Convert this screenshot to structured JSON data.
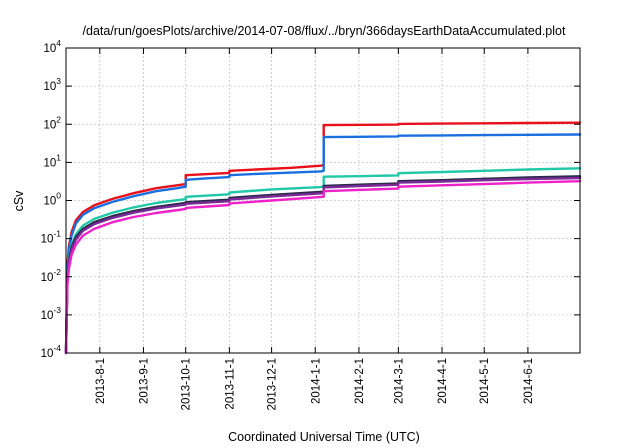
{
  "chart_data": {
    "type": "line",
    "title": "/data/run/goesPlots/archive/2014-07-08/flux/../bryn/366daysEarthDataAccumulated.plot",
    "xlabel": "Coordinated Universal Time (UTC)",
    "ylabel": "cSv",
    "y_scale": "log",
    "ylim": [
      0.0001,
      10000
    ],
    "xlim": [
      "2013-07-08",
      "2014-07-08"
    ],
    "grid": true,
    "legend": "none",
    "x_ticks": [
      "2013-8-1",
      "2013-9-1",
      "2013-10-1",
      "2013-11-1",
      "2013-12-1",
      "2014-1-1",
      "2014-2-1",
      "2014-3-1",
      "2014-4-1",
      "2014-5-1",
      "2014-6-1"
    ],
    "y_ticks": [
      {
        "value": 0.0001,
        "base": "10",
        "exp": "-4"
      },
      {
        "value": 0.001,
        "base": "10",
        "exp": "-3"
      },
      {
        "value": 0.01,
        "base": "10",
        "exp": "-2"
      },
      {
        "value": 0.1,
        "base": "10",
        "exp": "-1"
      },
      {
        "value": 1,
        "base": "10",
        "exp": "0"
      },
      {
        "value": 10,
        "base": "10",
        "exp": "1"
      },
      {
        "value": 100,
        "base": "10",
        "exp": "2"
      },
      {
        "value": 1000,
        "base": "10",
        "exp": "3"
      },
      {
        "value": 10000,
        "base": "10",
        "exp": "4"
      }
    ],
    "series": [
      {
        "color": "#e8101a",
        "x": [
          "2013-07-08",
          "2013-07-09",
          "2013-07-10",
          "2013-07-12",
          "2013-07-15",
          "2013-07-20",
          "2013-07-28",
          "2013-08-10",
          "2013-08-25",
          "2013-09-10",
          "2013-09-25",
          "2013-10-01",
          "2013-10-01",
          "2013-10-15",
          "2013-11-01",
          "2013-11-01",
          "2013-11-20",
          "2013-12-15",
          "2014-01-05",
          "2014-01-07",
          "2014-01-07",
          "2014-01-20",
          "2014-02-10",
          "2014-03-01",
          "2014-03-01",
          "2014-04-01",
          "2014-05-01",
          "2014-06-01",
          "2014-07-08"
        ],
        "y": [
          0.0001,
          0.02,
          0.06,
          0.15,
          0.3,
          0.5,
          0.75,
          1.1,
          1.55,
          2.1,
          2.5,
          2.7,
          4.6,
          4.9,
          5.3,
          6.0,
          6.5,
          7.2,
          8.2,
          8.5,
          95,
          96,
          97,
          98,
          102,
          104,
          106,
          108,
          110
        ]
      },
      {
        "color": "#1a6fe0",
        "x": [
          "2013-07-08",
          "2013-07-09",
          "2013-07-10",
          "2013-07-12",
          "2013-07-15",
          "2013-07-20",
          "2013-07-28",
          "2013-08-10",
          "2013-08-25",
          "2013-09-10",
          "2013-09-25",
          "2013-10-01",
          "2013-10-01",
          "2013-10-15",
          "2013-11-01",
          "2013-11-01",
          "2013-11-20",
          "2013-12-15",
          "2014-01-05",
          "2014-01-07",
          "2014-01-07",
          "2014-02-01",
          "2014-03-01",
          "2014-03-01",
          "2014-04-01",
          "2014-05-01",
          "2014-06-01",
          "2014-07-08"
        ],
        "y": [
          0.0001,
          0.015,
          0.05,
          0.12,
          0.25,
          0.42,
          0.63,
          0.92,
          1.3,
          1.75,
          2.1,
          2.3,
          3.5,
          3.8,
          4.1,
          4.6,
          5.0,
          5.4,
          5.8,
          6.0,
          46,
          47,
          48,
          50,
          51,
          52,
          53,
          54
        ]
      },
      {
        "color": "#20c8a8",
        "x": [
          "2013-07-08",
          "2013-07-09",
          "2013-07-10",
          "2013-07-12",
          "2013-07-15",
          "2013-07-20",
          "2013-07-28",
          "2013-08-10",
          "2013-08-25",
          "2013-09-10",
          "2013-09-25",
          "2013-10-01",
          "2013-10-01",
          "2013-11-01",
          "2013-11-01",
          "2013-12-01",
          "2014-01-05",
          "2014-01-07",
          "2014-01-07",
          "2014-02-01",
          "2014-03-01",
          "2014-03-01",
          "2014-04-01",
          "2014-05-01",
          "2014-06-01",
          "2014-07-08"
        ],
        "y": [
          0.0001,
          0.01,
          0.03,
          0.07,
          0.13,
          0.22,
          0.33,
          0.48,
          0.66,
          0.86,
          1.02,
          1.08,
          1.25,
          1.45,
          1.62,
          1.95,
          2.25,
          2.35,
          4.2,
          4.35,
          4.55,
          5.2,
          5.6,
          6.0,
          6.5,
          7.0
        ]
      },
      {
        "color": "#2a2a4a",
        "x": [
          "2013-07-08",
          "2013-07-09",
          "2013-07-10",
          "2013-07-12",
          "2013-07-15",
          "2013-07-20",
          "2013-07-28",
          "2013-08-10",
          "2013-08-25",
          "2013-09-10",
          "2013-10-01",
          "2013-10-01",
          "2013-11-01",
          "2013-11-01",
          "2013-12-01",
          "2014-01-07",
          "2014-01-07",
          "2014-02-01",
          "2014-03-01",
          "2014-03-01",
          "2014-04-01",
          "2014-05-01",
          "2014-06-01",
          "2014-07-08"
        ],
        "y": [
          0.0001,
          0.009,
          0.025,
          0.06,
          0.11,
          0.18,
          0.27,
          0.39,
          0.53,
          0.68,
          0.86,
          0.9,
          1.05,
          1.16,
          1.4,
          1.7,
          2.4,
          2.6,
          2.8,
          3.2,
          3.4,
          3.7,
          4.0,
          4.3
        ]
      },
      {
        "color": "#7a2a96",
        "x": [
          "2013-07-08",
          "2013-07-09",
          "2013-07-10",
          "2013-07-12",
          "2013-07-15",
          "2013-07-20",
          "2013-07-28",
          "2013-08-10",
          "2013-08-25",
          "2013-09-10",
          "2013-10-01",
          "2013-10-01",
          "2013-11-01",
          "2013-11-01",
          "2013-12-01",
          "2014-01-07",
          "2014-01-07",
          "2014-02-01",
          "2014-03-01",
          "2014-03-01",
          "2014-04-01",
          "2014-05-01",
          "2014-06-01",
          "2014-07-08"
        ],
        "y": [
          0.0001,
          0.008,
          0.022,
          0.052,
          0.095,
          0.16,
          0.24,
          0.35,
          0.48,
          0.62,
          0.78,
          0.82,
          0.96,
          1.06,
          1.28,
          1.55,
          2.2,
          2.4,
          2.6,
          2.95,
          3.15,
          3.4,
          3.65,
          3.9
        ]
      },
      {
        "color": "#ee22c8",
        "x": [
          "2013-07-08",
          "2013-07-09",
          "2013-07-10",
          "2013-07-12",
          "2013-07-15",
          "2013-07-20",
          "2013-07-28",
          "2013-08-10",
          "2013-08-25",
          "2013-09-10",
          "2013-10-01",
          "2013-10-01",
          "2013-11-01",
          "2013-11-01",
          "2013-12-01",
          "2014-01-07",
          "2014-01-07",
          "2014-02-01",
          "2014-03-01",
          "2014-03-01",
          "2014-04-01",
          "2014-05-01",
          "2014-06-01",
          "2014-07-08"
        ],
        "y": [
          0.0001,
          0.006,
          0.016,
          0.038,
          0.07,
          0.12,
          0.18,
          0.27,
          0.37,
          0.47,
          0.6,
          0.64,
          0.76,
          0.84,
          1.0,
          1.25,
          1.75,
          1.9,
          2.05,
          2.3,
          2.5,
          2.7,
          2.95,
          3.2
        ]
      }
    ]
  }
}
